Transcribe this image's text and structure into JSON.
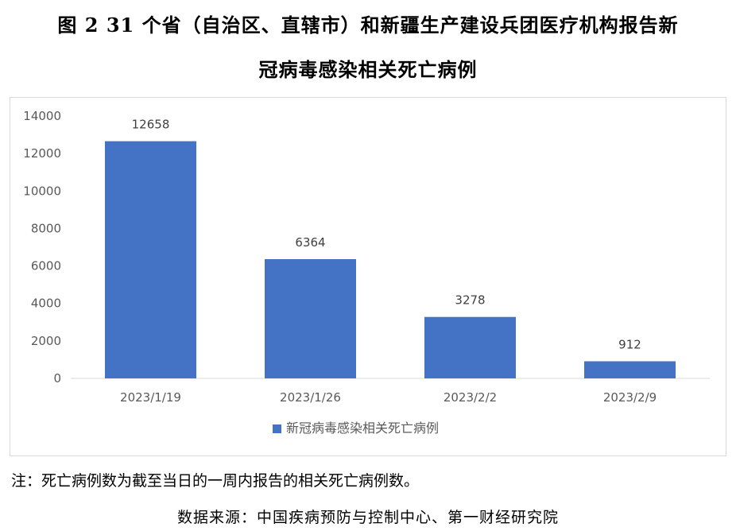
{
  "title_line1": "图 2 31 个省（自治区、直辖市）和新疆生产建设兵团医疗机构报告新",
  "title_line2": "冠病毒感染相关死亡病例",
  "note": "注：死亡病例数为截至当日的一周内报告的相关死亡病例数。",
  "source": "数据来源：中国疾病预防与控制中心、第一财经研究院",
  "chart_data": {
    "type": "bar",
    "categories": [
      "2023/1/19",
      "2023/1/26",
      "2023/2/2",
      "2023/2/9"
    ],
    "series": [
      {
        "name": "新冠病毒感染相关死亡病例",
        "values": [
          12658,
          6364,
          3278,
          912
        ]
      }
    ],
    "data_labels": [
      "12658",
      "6364",
      "3278",
      "912"
    ],
    "ylim": [
      0,
      14000
    ],
    "yticks": [
      "0",
      "2000",
      "4000",
      "6000",
      "8000",
      "10000",
      "12000",
      "14000"
    ],
    "grid": false,
    "legend": "bottom",
    "colors": {
      "bar": "#4472C4",
      "axis": "#d9d9d9",
      "text": "#595959"
    }
  }
}
